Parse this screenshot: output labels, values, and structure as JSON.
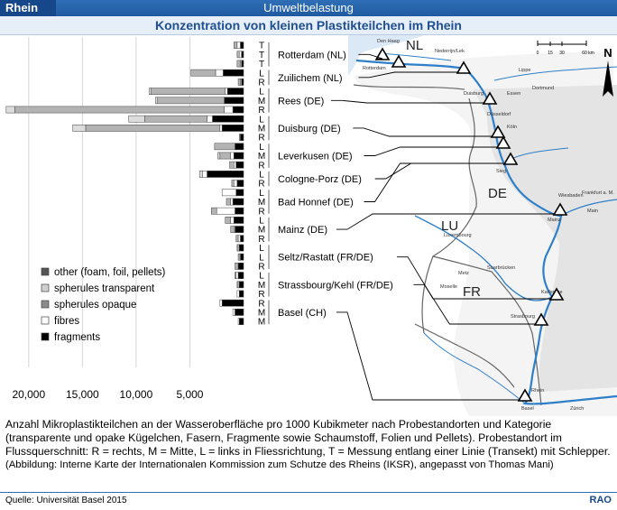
{
  "header": {
    "tag": "Rhein",
    "section": "Umweltbelastung"
  },
  "title": "Konzentration von kleinen Plastikteilchen im Rhein",
  "caption": {
    "main": "Anzahl Mikroplastikteilchen an der Wasseroberfläche pro 1000 Kubikmeter nach Probestandorten und Kategorie (transparente und opake Kügelchen, Fasern, Fragmente sowie Schaumstoff, Folien und Pellets). Probestandort im Flussquerschnitt: R = rechts, M = Mitte, L = links in Fliessrichtung, T = Messung entlang einer Linie (Transekt) mit Schlepper.",
    "note": "(Abbildung: Interne Karte der Internationalen Kommission zum Schutze des Rheins (IKSR), angepasst von Thomas Mani)"
  },
  "footer": {
    "source": "Quelle: Universität Basel 2015",
    "logo": "RAO"
  },
  "chart_data": {
    "type": "bar",
    "orientation": "horizontal, stacked, extending leftwards",
    "xlim": [
      0,
      22000
    ],
    "x_ticks": [
      20000,
      15000,
      10000,
      5000
    ],
    "x_tick_labels": [
      "20,000",
      "15,000",
      "10,000",
      "5,000"
    ],
    "grid": true,
    "legend_position": "lower-left",
    "categories": [
      "fragments",
      "fibres",
      "spherules opaque",
      "spherules transparent",
      "other (foam, foil, pellets)"
    ],
    "category_colors": {
      "fragments": "#000000",
      "fibres": "#ffffff",
      "spherules opaque": "#888888",
      "spherules transparent": "#bbbbbb",
      "other (foam, foil, pellets)": "#555555"
    },
    "legend": [
      {
        "label": "other (foam, foil, pellets)",
        "key": "other"
      },
      {
        "label": "spherules transparent",
        "key": "transparent"
      },
      {
        "label": "spherules opaque",
        "key": "opaque"
      },
      {
        "label": "fibres",
        "key": "fibres"
      },
      {
        "label": "fragments",
        "key": "fragments"
      }
    ],
    "stations": [
      {
        "name": "Rotterdam (NL)",
        "samples": [
          {
            "pos": "T",
            "fragments": 300,
            "fibres": 300,
            "opaque": 300,
            "transparent": 0,
            "other": 0
          },
          {
            "pos": "T",
            "fragments": 200,
            "fibres": 200,
            "opaque": 200,
            "transparent": 0,
            "other": 0
          },
          {
            "pos": "T",
            "fragments": 200,
            "fibres": 100,
            "opaque": 300,
            "transparent": 0,
            "other": 0
          }
        ]
      },
      {
        "name": "Zuilichem (NL)",
        "samples": [
          {
            "pos": "L",
            "fragments": 1900,
            "fibres": 700,
            "opaque": 2300,
            "transparent": 0,
            "other": 0
          },
          {
            "pos": "R",
            "fragments": 200,
            "fibres": 100,
            "opaque": 200,
            "transparent": 0,
            "other": 0
          }
        ]
      },
      {
        "name": "Rees (DE)",
        "samples": [
          {
            "pos": "L",
            "fragments": 1500,
            "fibres": 200,
            "opaque": 6900,
            "transparent": 200,
            "other": 0
          },
          {
            "pos": "M",
            "fragments": 1800,
            "fibres": 0,
            "opaque": 6200,
            "transparent": 200,
            "other": 0
          },
          {
            "pos": "R",
            "fragments": 1000,
            "fibres": 800,
            "opaque": 19500,
            "transparent": 800,
            "other": 0
          }
        ]
      },
      {
        "name": "Duisburg (DE)",
        "samples": [
          {
            "pos": "L",
            "fragments": 2900,
            "fibres": 500,
            "opaque": 5800,
            "transparent": 1500,
            "other": 0
          },
          {
            "pos": "M",
            "fragments": 2000,
            "fibres": 200,
            "opaque": 12500,
            "transparent": 1200,
            "other": 0
          },
          {
            "pos": "R",
            "fragments": 300,
            "fibres": 0,
            "opaque": 100,
            "transparent": 0,
            "other": 0
          }
        ]
      },
      {
        "name": "Leverkusen (DE)",
        "samples": [
          {
            "pos": "L",
            "fragments": 800,
            "fibres": 0,
            "opaque": 1900,
            "transparent": 0,
            "other": 0
          },
          {
            "pos": "M",
            "fragments": 900,
            "fibres": 300,
            "opaque": 1000,
            "transparent": 200,
            "other": 0
          },
          {
            "pos": "R",
            "fragments": 700,
            "fibres": 200,
            "opaque": 400,
            "transparent": 0,
            "other": 0
          }
        ]
      },
      {
        "name": "Cologne-Porz (DE)",
        "samples": [
          {
            "pos": "L",
            "fragments": 3400,
            "fibres": 400,
            "opaque": 0,
            "transparent": 300,
            "other": 0
          },
          {
            "pos": "R",
            "fragments": 600,
            "fibres": 300,
            "opaque": 200,
            "transparent": 0,
            "other": 0
          }
        ]
      },
      {
        "name": "Bad Honnef (DE)",
        "samples": [
          {
            "pos": "L",
            "fragments": 700,
            "fibres": 1300,
            "opaque": 0,
            "transparent": 0,
            "other": 0
          },
          {
            "pos": "M",
            "fragments": 1000,
            "fibres": 200,
            "opaque": 400,
            "transparent": 0,
            "other": 0
          },
          {
            "pos": "R",
            "fragments": 800,
            "fibres": 1700,
            "opaque": 500,
            "transparent": 0,
            "other": 0
          }
        ]
      },
      {
        "name": "Mainz (DE)",
        "samples": [
          {
            "pos": "L",
            "fragments": 900,
            "fibres": 300,
            "opaque": 500,
            "transparent": 0,
            "other": 0
          },
          {
            "pos": "M",
            "fragments": 800,
            "fibres": 100,
            "opaque": 300,
            "transparent": 0,
            "other": 0
          },
          {
            "pos": "R",
            "fragments": 300,
            "fibres": 200,
            "opaque": 200,
            "transparent": 0,
            "other": 0
          }
        ]
      },
      {
        "name": "Seltz/Rastatt (FR/DE)",
        "samples": [
          {
            "pos": "L",
            "fragments": 400,
            "fibres": 100,
            "opaque": 100,
            "transparent": 0,
            "other": 0
          },
          {
            "pos": "L",
            "fragments": 300,
            "fibres": 100,
            "opaque": 100,
            "transparent": 0,
            "other": 0
          },
          {
            "pos": "R",
            "fragments": 500,
            "fibres": 0,
            "opaque": 300,
            "transparent": 0,
            "other": 0
          }
        ]
      },
      {
        "name": "Strassbourg/Kehl (FR/DE)",
        "samples": [
          {
            "pos": "L",
            "fragments": 500,
            "fibres": 200,
            "opaque": 100,
            "transparent": 0,
            "other": 0
          },
          {
            "pos": "M",
            "fragments": 400,
            "fibres": 100,
            "opaque": 100,
            "transparent": 0,
            "other": 0
          },
          {
            "pos": "R",
            "fragments": 400,
            "fibres": 200,
            "opaque": 0,
            "transparent": 0,
            "other": 0
          }
        ]
      },
      {
        "name": "Basel (CH)",
        "samples": [
          {
            "pos": "R",
            "fragments": 2000,
            "fibres": 200,
            "opaque": 0,
            "transparent": 0,
            "other": 0
          },
          {
            "pos": "M",
            "fragments": 800,
            "fibres": 200,
            "opaque": 0,
            "transparent": 0,
            "other": 0
          },
          {
            "pos": "M",
            "fragments": 400,
            "fibres": 100,
            "opaque": 0,
            "transparent": 0,
            "other": 0
          }
        ]
      }
    ]
  },
  "map": {
    "countries": [
      "NL",
      "DE",
      "LU",
      "FR"
    ],
    "north_label": "N",
    "scale_labels": [
      "0",
      "15",
      "30",
      "60 km"
    ],
    "places": [
      "Den Haag",
      "Rotterdam",
      "Nederrijn/Lek",
      "Lippe",
      "Dortmund",
      "Duisburg",
      "Essen",
      "Düsseldorf",
      "Köln",
      "Sieg",
      "Wiesbaden",
      "Frankfurt a. M.",
      "Mainz",
      "Luxembourg",
      "Saarbrücken",
      "Metz",
      "Karlsruhe",
      "Strasbourg",
      "Zürich",
      "Basel",
      "Rhein",
      "Moselle",
      "Main"
    ]
  }
}
